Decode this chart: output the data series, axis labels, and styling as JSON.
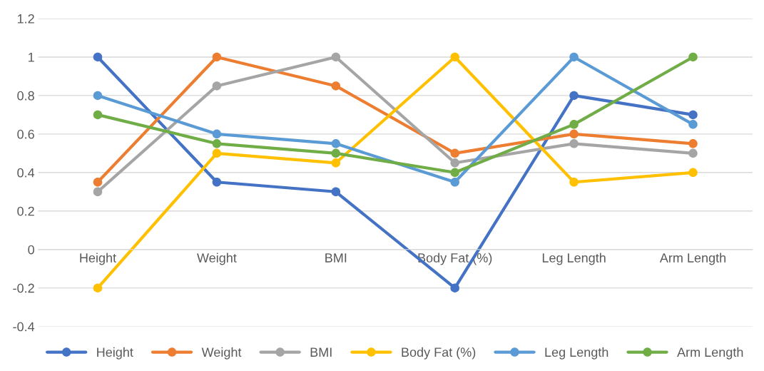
{
  "chart_data": {
    "type": "line",
    "categories": [
      "Height",
      "Weight",
      "BMI",
      "Body Fat (%)",
      "Leg Length",
      "Arm Length"
    ],
    "series": [
      {
        "name": "Height",
        "color": "#4472c4",
        "values": [
          1,
          0.35,
          0.3,
          -0.2,
          0.8,
          0.7
        ]
      },
      {
        "name": "Weight",
        "color": "#ed7d31",
        "values": [
          0.35,
          1,
          0.85,
          0.5,
          0.6,
          0.55
        ]
      },
      {
        "name": "BMI",
        "color": "#a5a5a5",
        "values": [
          0.3,
          0.85,
          1,
          0.45,
          0.55,
          0.5
        ]
      },
      {
        "name": "Body Fat (%)",
        "color": "#ffc000",
        "values": [
          -0.2,
          0.5,
          0.45,
          1,
          0.35,
          0.4
        ]
      },
      {
        "name": "Leg Length",
        "color": "#5b9bd5",
        "values": [
          0.8,
          0.6,
          0.55,
          0.35,
          1,
          0.65
        ]
      },
      {
        "name": "Arm Length",
        "color": "#70ad47",
        "values": [
          0.7,
          0.55,
          0.5,
          0.4,
          0.65,
          1
        ]
      }
    ],
    "ylim": [
      -0.4,
      1.2
    ],
    "yticks": [
      -0.4,
      -0.2,
      0,
      0.2,
      0.4,
      0.6,
      0.8,
      1,
      1.2
    ],
    "grid": "y",
    "legend": "bottom",
    "marker": "circle",
    "line_style": "solid"
  }
}
